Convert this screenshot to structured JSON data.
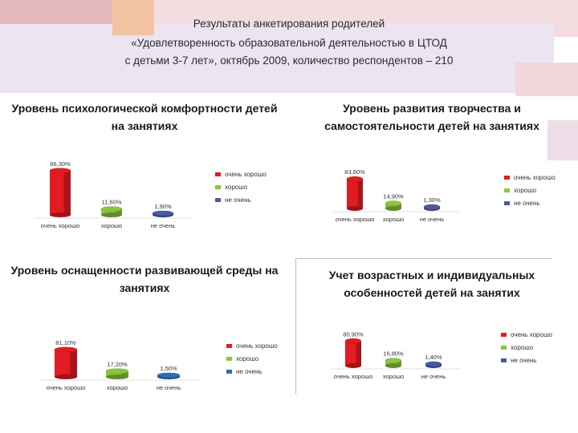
{
  "header": {
    "line1": "Результаты анкетирования родителей",
    "line2": "«Удовлетворенность образовательной деятельностью в ЦТОД",
    "line3": "с детьми 3-7 лет», октябрь 2009, количество респондентов – 210"
  },
  "colors": {
    "red": "#e31b23",
    "green": "#8cc63f",
    "blue_dark": "#4a5aa0",
    "blue": "#2f6fb5",
    "band_pink": "#f0d6d8",
    "band_lilac": "#ece4f1",
    "accent_rose": "#e8b8b8",
    "accent_peach": "#f2c7a8"
  },
  "chart_data": [
    {
      "type": "bar",
      "title": "Уровень психологической комфортности  детей на занятиях",
      "categories": [
        "очень хорошо",
        "хорошо",
        "не очень"
      ],
      "values": [
        86.3,
        11.6,
        1.9
      ],
      "value_labels": [
        "86,30%",
        "11,60%",
        "1,90%"
      ],
      "legend": [
        "очень хорошо",
        "хорошо",
        "не очень"
      ],
      "legend_position": "right",
      "ylim": [
        0,
        100
      ],
      "grid": false
    },
    {
      "type": "bar",
      "title": "Уровень развития творчества и самостоятельности детей на занятиях",
      "categories": [
        "очень хорошо",
        "хорошо",
        "не очень"
      ],
      "values": [
        83.6,
        14.9,
        1.3
      ],
      "value_labels": [
        "83,60%",
        "14,90%",
        "1,30%"
      ],
      "legend": [
        "очень хорошо",
        "хорошо",
        "не очень"
      ],
      "legend_position": "right",
      "ylim": [
        0,
        100
      ],
      "grid": false
    },
    {
      "type": "bar",
      "title": "Уровень оснащенности развивающей среды на занятиях",
      "categories": [
        "очень хорошо",
        "хорошо",
        "не очень"
      ],
      "values": [
        81.1,
        17.2,
        1.5
      ],
      "value_labels": [
        "81,10%",
        "17,20%",
        "1,50%"
      ],
      "legend": [
        "очень хорошо",
        "хорошо",
        "не очень"
      ],
      "legend_position": "right",
      "ylim": [
        0,
        100
      ],
      "grid": false
    },
    {
      "type": "bar",
      "title": "Учет возрастных и индивидуальных особенностей детей на занятих",
      "categories": [
        "очень хорошо",
        "хорошо",
        "не очень"
      ],
      "values": [
        80.9,
        16.8,
        1.4
      ],
      "value_labels": [
        "80,90%",
        "16,80%",
        "1,40%"
      ],
      "legend": [
        "очень хорошо",
        "хорошо",
        "не очень"
      ],
      "legend_position": "right",
      "ylim": [
        0,
        100
      ],
      "grid": false
    }
  ]
}
